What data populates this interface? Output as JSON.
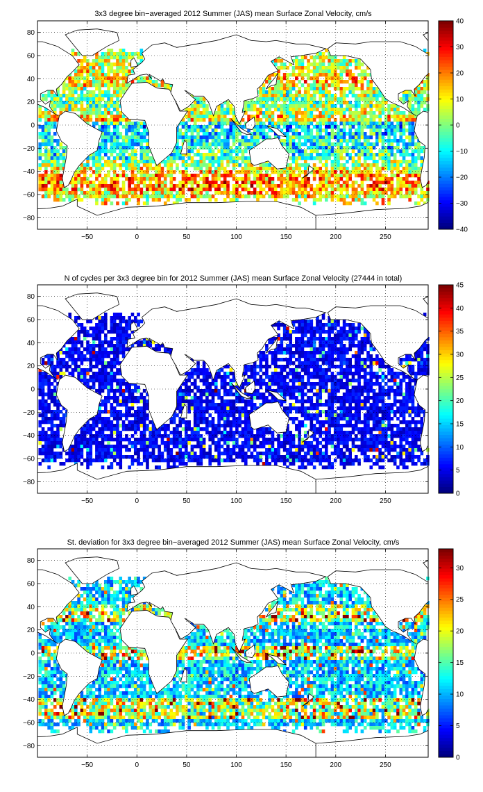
{
  "chart_data": [
    {
      "type": "heatmap",
      "title": "3x3 degree bin−averaged 2012 Summer (JAS) mean Surface Zonal Velocity, cm/s",
      "xlabel": "",
      "ylabel": "",
      "xlim": [
        -100,
        293
      ],
      "ylim": [
        -90,
        90
      ],
      "x_ticks": [
        "−50",
        "0",
        "50",
        "100",
        "150",
        "200",
        "250"
      ],
      "y_ticks": [
        "80",
        "60",
        "40",
        "20",
        "0",
        "−20",
        "−40",
        "−60",
        "−80"
      ],
      "colorbar": {
        "min": -40,
        "max": 40,
        "ticks": [
          "40",
          "30",
          "20",
          "10",
          "0",
          "−10",
          "−20",
          "−30",
          "−40"
        ]
      },
      "colormap": "jet",
      "grid": true,
      "bin_size_deg": 3,
      "band_means": [
        {
          "lat": 50,
          "value": 6
        },
        {
          "lat": 40,
          "value": 14
        },
        {
          "lat": 30,
          "value": 4
        },
        {
          "lat": 20,
          "value": -2
        },
        {
          "lat": 10,
          "value": 6
        },
        {
          "lat": 5,
          "value": 14
        },
        {
          "lat": 0,
          "value": -16
        },
        {
          "lat": -5,
          "value": -12
        },
        {
          "lat": -15,
          "value": -8
        },
        {
          "lat": -25,
          "value": -6
        },
        {
          "lat": -35,
          "value": 4
        },
        {
          "lat": -45,
          "value": 18
        },
        {
          "lat": -55,
          "value": 20
        },
        {
          "lat": -62,
          "value": 8
        }
      ]
    },
    {
      "type": "heatmap",
      "title": "N of cycles per 3x3 degree bin for 2012 Summer (JAS) mean Surface Zonal Velocity (27444 in total)",
      "xlabel": "",
      "ylabel": "",
      "xlim": [
        -100,
        293
      ],
      "ylim": [
        -90,
        90
      ],
      "x_ticks": [
        "−50",
        "0",
        "50",
        "100",
        "150",
        "200",
        "250"
      ],
      "y_ticks": [
        "80",
        "60",
        "40",
        "20",
        "0",
        "−20",
        "−40",
        "−60",
        "−80"
      ],
      "colorbar": {
        "min": 0,
        "max": 45,
        "ticks": [
          "45",
          "40",
          "35",
          "30",
          "25",
          "20",
          "15",
          "10",
          "5",
          "0"
        ]
      },
      "colormap": "jet",
      "grid": true,
      "bin_size_deg": 3,
      "total_cycles": 27444,
      "typical_count_per_bin": 6
    },
    {
      "type": "heatmap",
      "title": "St. deviation for 3x3 degree bin−averaged 2012 Summer (JAS) mean Surface Zonal Velocity, cm/s",
      "xlabel": "",
      "ylabel": "",
      "xlim": [
        -100,
        293
      ],
      "ylim": [
        -90,
        90
      ],
      "x_ticks": [
        "−50",
        "0",
        "50",
        "100",
        "150",
        "200",
        "250"
      ],
      "y_ticks": [
        "80",
        "60",
        "40",
        "20",
        "0",
        "−20",
        "−40",
        "−60",
        "−80"
      ],
      "colorbar": {
        "min": 0,
        "max": 33,
        "ticks": [
          "30",
          "25",
          "20",
          "15",
          "10",
          "5",
          "0"
        ]
      },
      "colormap": "jet",
      "grid": true,
      "bin_size_deg": 3,
      "typical_std": 12
    }
  ]
}
